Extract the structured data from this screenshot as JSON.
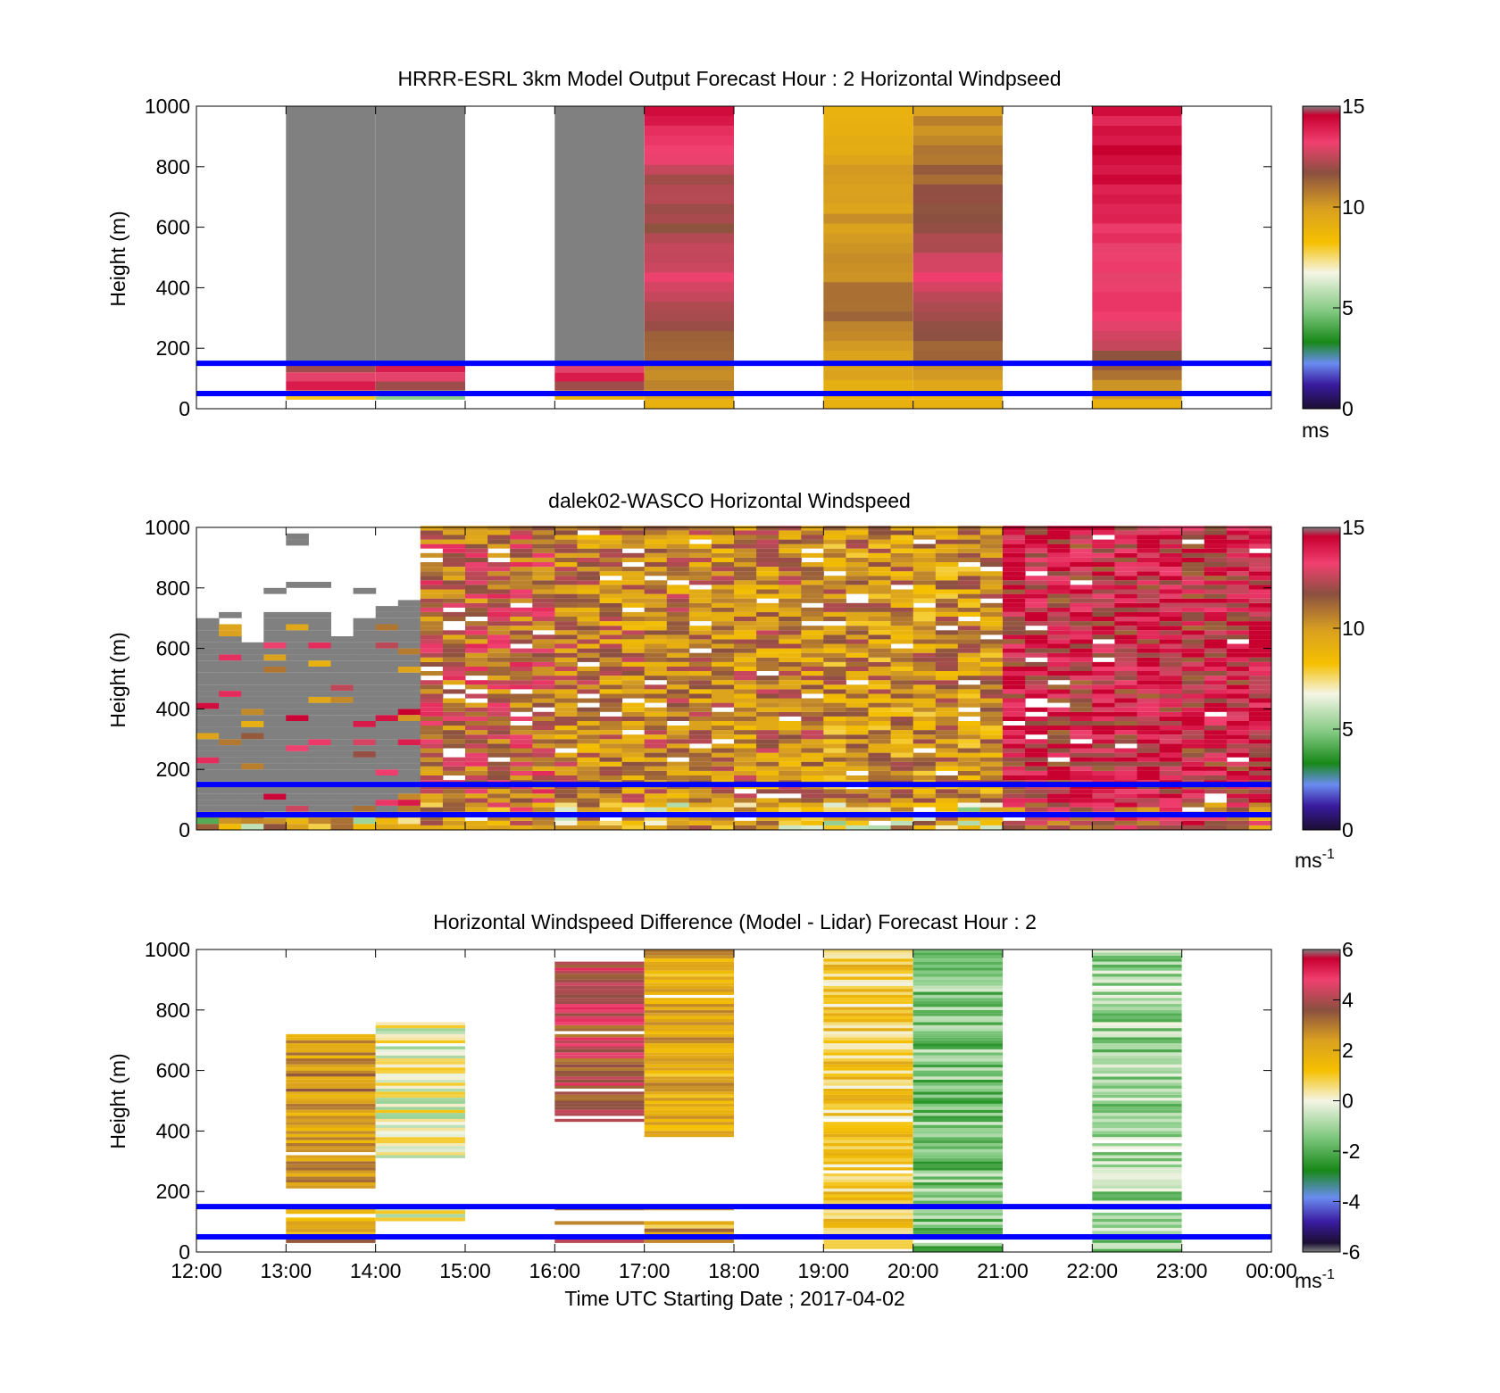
{
  "figure": {
    "xlabel": "Time UTC  Starting Date ; 2017-04-02",
    "xticks": [
      "12:00",
      "13:00",
      "14:00",
      "15:00",
      "16:00",
      "17:00",
      "18:00",
      "19:00",
      "20:00",
      "21:00",
      "22:00",
      "23:00",
      "00:00"
    ],
    "overlay_line_color": "#0000ff",
    "overlay_line_heights_m": [
      50,
      150
    ]
  },
  "chart_data": [
    {
      "type": "heatmap",
      "title": "HRRR-ESRL 3km Model Output   Forecast Hour : 2 Horizontal Windpseed",
      "ylabel": "Height (m)",
      "ylim": [
        0,
        1000
      ],
      "yticks": [
        0,
        200,
        400,
        600,
        800,
        1000
      ],
      "x_range_hours": [
        12,
        24
      ],
      "colorbar": {
        "min": 0,
        "max": 15,
        "ticks": [
          "0",
          "5",
          "10",
          "15"
        ],
        "unit": "ms",
        "unit_sup": ""
      },
      "hourly_columns": [
        {
          "start": "13:00",
          "end": "14:00",
          "above_150m": "no data (gray)",
          "near_surface_ms": [
            12,
            13,
            14,
            8
          ]
        },
        {
          "start": "14:00",
          "end": "15:00",
          "above_150m": "no data (gray)",
          "near_surface_ms": [
            14,
            13,
            12,
            5
          ]
        },
        {
          "start": "16:00",
          "end": "17:00",
          "above_150m": "no data (gray)",
          "near_surface_ms": [
            13,
            14,
            12,
            9
          ]
        },
        {
          "start": "17:00",
          "end": "18:00",
          "profile_ms": [
            14,
            13,
            12,
            12,
            13,
            12,
            11,
            10
          ]
        },
        {
          "start": "19:00",
          "end": "20:00",
          "profile_ms": [
            9,
            9.5,
            10,
            10,
            10.5,
            11,
            10,
            9
          ]
        },
        {
          "start": "20:00",
          "end": "21:00",
          "profile_ms": [
            10,
            11,
            11.5,
            12,
            13,
            12,
            11,
            9
          ]
        },
        {
          "start": "22:00",
          "end": "23:00",
          "profile_ms": [
            14,
            14.5,
            14,
            13.5,
            13.5,
            13,
            12,
            10
          ]
        }
      ]
    },
    {
      "type": "heatmap",
      "title": "dalek02-WASCO  Horizontal Windspeed",
      "ylabel": "Height (m)",
      "ylim": [
        0,
        1000
      ],
      "yticks": [
        0,
        200,
        400,
        600,
        800,
        1000
      ],
      "x_range_hours": [
        12,
        24
      ],
      "colorbar": {
        "min": 0,
        "max": 15,
        "ticks": [
          "0",
          "5",
          "10",
          "15"
        ],
        "unit": "ms",
        "unit_sup": "-1"
      },
      "description_values": {
        "12:00-14:30": "mostly below detection (gray) with data tops 600-700 m",
        "14:30-24:00": "8-15 m/s throughout 0-1000 m, strongest (13-15) after 21:00"
      }
    },
    {
      "type": "heatmap",
      "title": "Horizontal Windspeed Difference (Model - Lidar) Forecast Hour : 2",
      "ylabel": "Height (m)",
      "ylim": [
        0,
        1000
      ],
      "yticks": [
        0,
        200,
        400,
        600,
        800,
        1000
      ],
      "x_range_hours": [
        12,
        24
      ],
      "colorbar": {
        "min": -6,
        "max": 6,
        "ticks": [
          "-6",
          "-4",
          "-2",
          "0",
          "2",
          "4",
          "6"
        ],
        "unit": "ms",
        "unit_sup": "-1"
      },
      "hourly_columns": [
        {
          "start": "13:00",
          "end": "14:00",
          "data_range_m": [
            210,
            720
          ],
          "typical_diff": 2.5
        },
        {
          "start": "14:00",
          "end": "15:00",
          "data_range_m": [
            310,
            760
          ],
          "typical_diff": 0
        },
        {
          "start": "16:00",
          "end": "17:00",
          "data_range_m": [
            430,
            960
          ],
          "typical_diff": 4
        },
        {
          "start": "17:00",
          "end": "18:00",
          "data_range_m": [
            380,
            1000
          ],
          "typical_diff": 2
        },
        {
          "start": "19:00",
          "end": "20:00",
          "data_range_m": [
            0,
            1000
          ],
          "typical_diff": 1
        },
        {
          "start": "20:00",
          "end": "21:00",
          "data_range_m": [
            0,
            1000
          ],
          "typical_diff": -1.5
        },
        {
          "start": "22:00",
          "end": "23:00",
          "data_range_m": [
            0,
            1000
          ],
          "typical_diff": -1
        }
      ]
    }
  ]
}
